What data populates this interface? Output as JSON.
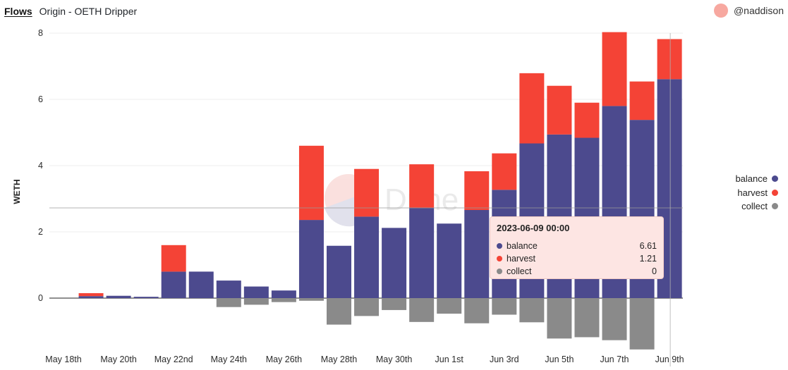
{
  "header": {
    "tab": "Flows",
    "title": "Origin - OETH Dripper"
  },
  "author": {
    "name": "@naddison"
  },
  "watermark": "Dune",
  "colors": {
    "balance": "#4c4a8e",
    "harvest": "#f44336",
    "collect": "#8a8a8a"
  },
  "legend": [
    {
      "label": "balance",
      "color": "#4c4a8e"
    },
    {
      "label": "harvest",
      "color": "#f44336"
    },
    {
      "label": "collect",
      "color": "#8a8a8a"
    }
  ],
  "tooltip": {
    "title": "2023-06-09 00:00",
    "rows": [
      {
        "name": "balance",
        "value": "6.61",
        "color": "#4c4a8e"
      },
      {
        "name": "harvest",
        "value": "1.21",
        "color": "#f44336"
      },
      {
        "name": "collect",
        "value": "0",
        "color": "#8a8a8a"
      }
    ]
  },
  "chart_data": {
    "type": "bar",
    "stacked": true,
    "ylabel": "WETH",
    "ylim": [
      -1.55,
      8.1
    ],
    "yticks": [
      0,
      2,
      4,
      6,
      8
    ],
    "categories": [
      "2023-05-18",
      "2023-05-19",
      "2023-05-20",
      "2023-05-21",
      "2023-05-22",
      "2023-05-23",
      "2023-05-24",
      "2023-05-25",
      "2023-05-26",
      "2023-05-27",
      "2023-05-28",
      "2023-05-29",
      "2023-05-30",
      "2023-05-31",
      "2023-06-01",
      "2023-06-02",
      "2023-06-03",
      "2023-06-04",
      "2023-06-05",
      "2023-06-06",
      "2023-06-07",
      "2023-06-08",
      "2023-06-09"
    ],
    "x_tick_labels": [
      {
        "index": 0,
        "label": "May 18th"
      },
      {
        "index": 2,
        "label": "May 20th"
      },
      {
        "index": 4,
        "label": "May 22nd"
      },
      {
        "index": 6,
        "label": "May 24th"
      },
      {
        "index": 8,
        "label": "May 26th"
      },
      {
        "index": 10,
        "label": "May 28th"
      },
      {
        "index": 12,
        "label": "May 30th"
      },
      {
        "index": 14,
        "label": "Jun 1st"
      },
      {
        "index": 16,
        "label": "Jun 3rd"
      },
      {
        "index": 18,
        "label": "Jun 5th"
      },
      {
        "index": 20,
        "label": "Jun 7th"
      },
      {
        "index": 22,
        "label": "Jun 9th"
      }
    ],
    "series": [
      {
        "name": "balance",
        "values": [
          0,
          0.06,
          0.07,
          0.04,
          0.8,
          0.8,
          0.53,
          0.35,
          0.23,
          2.36,
          1.58,
          2.46,
          2.12,
          2.73,
          2.25,
          2.66,
          3.27,
          4.67,
          4.94,
          4.84,
          5.8,
          5.38,
          6.61
        ]
      },
      {
        "name": "harvest",
        "values": [
          0,
          0.09,
          0,
          0,
          0.8,
          0,
          0,
          0,
          0,
          2.24,
          0,
          1.44,
          0,
          1.31,
          0,
          1.17,
          1.1,
          2.12,
          1.47,
          1.06,
          2.23,
          1.16,
          1.21
        ]
      },
      {
        "name": "collect",
        "values": [
          0,
          0,
          0,
          0,
          0,
          0,
          -0.27,
          -0.2,
          -0.12,
          -0.08,
          -0.8,
          -0.54,
          -0.36,
          -0.72,
          -0.47,
          -0.76,
          -0.5,
          -0.73,
          -1.22,
          -1.18,
          -1.27,
          -1.55,
          0
        ]
      }
    ],
    "grid": true,
    "legend_position": "right"
  }
}
